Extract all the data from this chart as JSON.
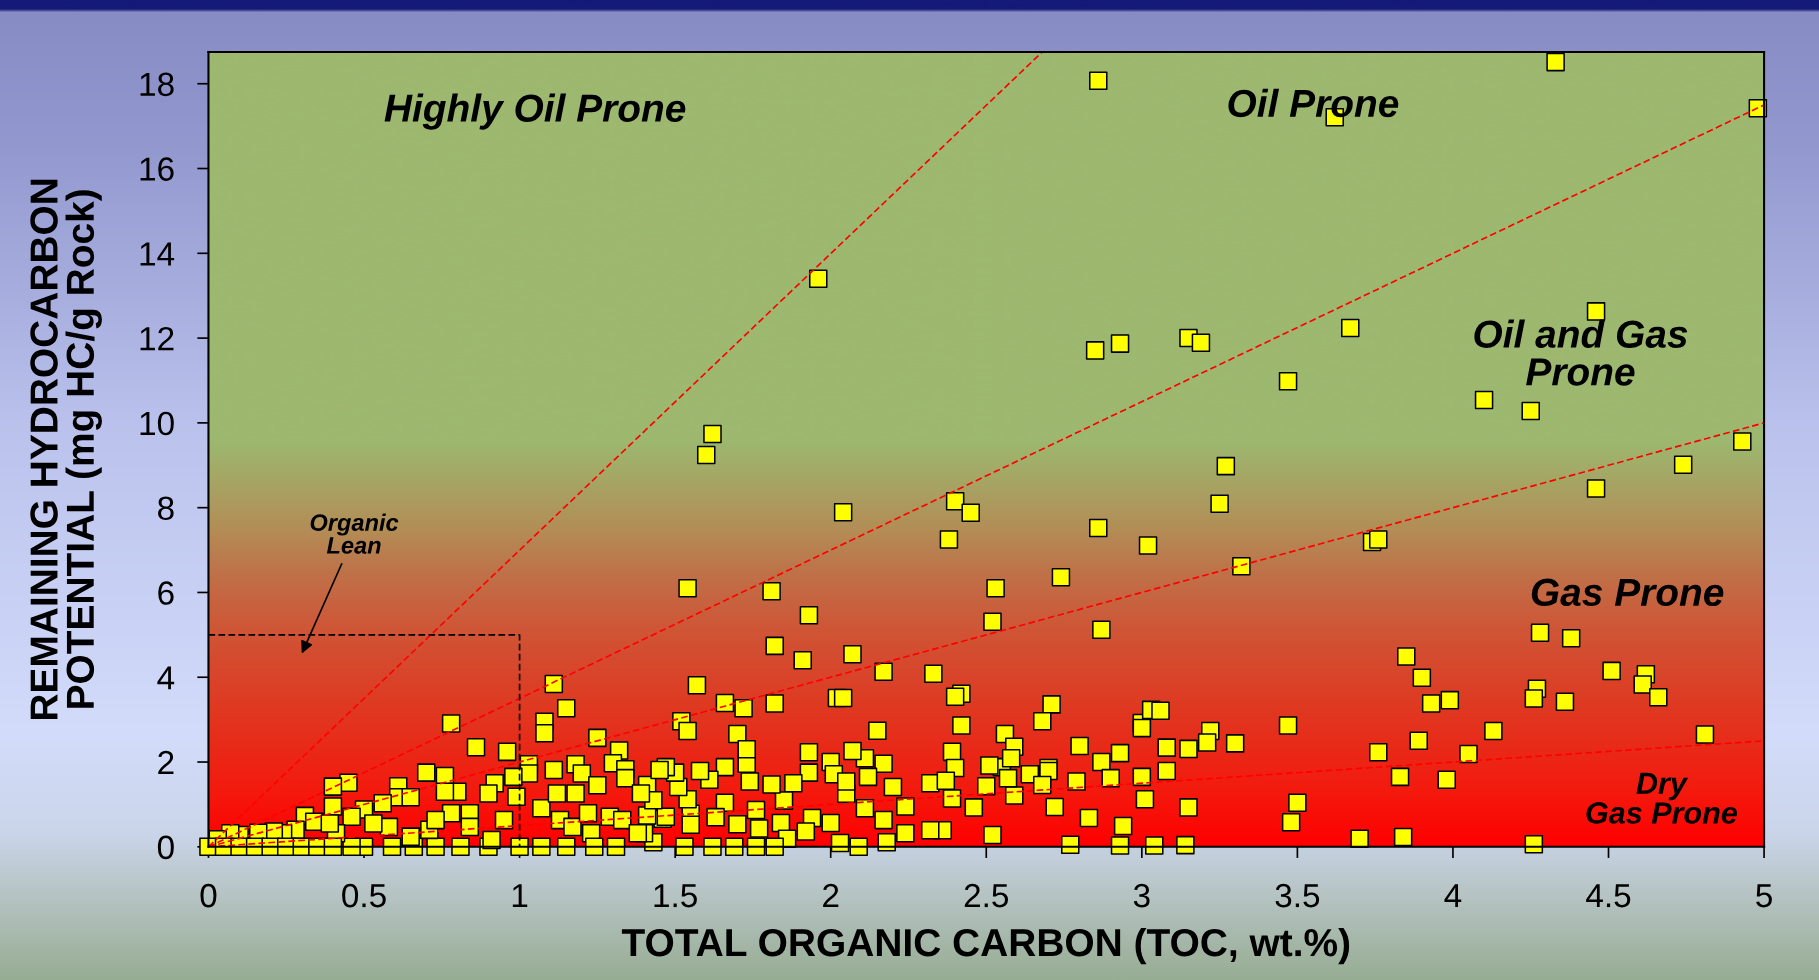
{
  "chart_data": {
    "type": "scatter",
    "xlabel": "TOTAL ORGANIC CARBON (TOC, wt.%)",
    "ylabel": "REMAINING HYDROCARBON\nPOTENTIAL (mg HC/g Rock)",
    "xlim": [
      0,
      5
    ],
    "ylim": [
      0,
      18.75
    ],
    "xticks": [
      0,
      0.5,
      1,
      1.5,
      2,
      2.5,
      3,
      3.5,
      4,
      4.5,
      5
    ],
    "yticks": [
      0,
      2,
      4,
      6,
      8,
      10,
      12,
      14,
      16,
      18
    ],
    "series": [
      {
        "color": "#ffff00",
        "marker": "square",
        "x": [
          2.86,
          4.33,
          3.62,
          4.98,
          1.96,
          2.85,
          2.93,
          3.15,
          3.19,
          3.67,
          3.47,
          4.46,
          4.1,
          4.25,
          4.93,
          4.74,
          4.46,
          3.27,
          3.25,
          2.04,
          2.4,
          2.45,
          1.62,
          1.6,
          2.38,
          2.86,
          3.02,
          3.74,
          3.76,
          3.32,
          2.74,
          1.54,
          1.81,
          2.53,
          2.52,
          2.87,
          1.93,
          1.82,
          1.91,
          2.07,
          2.17,
          2.33,
          4.28,
          4.38,
          3.85,
          3.9,
          4.51,
          4.62,
          4.61,
          4.66,
          4.27,
          4.26,
          4.36,
          3.93,
          3.99,
          3.47,
          4.13,
          4.81,
          3.89,
          3.76,
          4.05,
          3.83,
          3.98,
          3.5,
          3.48,
          3.7,
          3.84,
          4.26,
          3.22,
          3.21,
          3.3,
          3.15,
          3.15,
          3.14,
          1.57,
          1.66,
          1.72,
          1.82,
          2.02,
          2.04,
          2.42,
          2.4,
          2.71,
          2.68,
          2.42,
          2.15,
          1.52,
          1.54,
          1.7,
          3.0,
          3.03,
          3.06,
          3.0,
          2.56,
          2.59,
          2.39,
          2.4,
          2.8,
          2.93,
          2.87,
          2.7,
          2.79,
          2.9,
          3.0,
          3.08,
          3.08,
          3.01,
          2.94,
          2.93,
          3.04,
          2.77,
          2.83,
          2.72,
          2.52,
          2.46,
          2.39,
          2.36,
          2.32,
          2.32,
          2.37,
          2.5,
          2.55,
          2.58,
          2.64,
          2.7,
          2.68,
          2.59,
          2.57,
          2.51,
          2.24,
          2.24,
          2.18,
          2.17,
          2.11,
          2.2,
          2.17,
          2.11,
          2.07,
          2.12,
          2.05,
          2.03,
          2.09,
          2.0,
          1.94,
          1.93,
          2.0,
          2.01,
          2.05,
          1.93,
          1.88,
          1.85,
          1.84,
          1.86,
          1.92,
          1.82,
          1.81,
          1.76,
          1.77,
          1.76,
          1.74,
          1.73,
          1.73,
          1.7,
          1.69,
          1.66,
          1.63,
          1.62,
          1.66,
          1.61,
          1.58,
          1.55,
          1.55,
          1.53,
          1.54,
          1.51,
          1.5,
          1.47,
          1.43,
          1.46,
          1.41,
          1.41,
          1.4,
          1.11,
          1.15,
          0.78,
          1.08,
          1.08,
          0.86,
          0.96,
          1.25,
          1.32,
          1.3,
          1.03,
          1.03,
          1.11,
          1.18,
          1.2,
          1.25,
          1.34,
          1.34,
          1.45,
          0.98,
          0.92,
          0.76,
          0.7,
          0.8,
          0.76,
          0.61,
          0.45,
          0.4,
          0.4,
          0.61,
          0.65,
          0.56,
          0.5,
          0.46,
          0.31,
          0.34,
          0.28,
          0.24,
          0.21,
          0.16,
          0.1,
          0.07,
          0.03,
          0.78,
          0.84,
          0.9,
          0.99,
          1.07,
          1.12,
          1.18,
          1.13,
          1.17,
          1.22,
          1.23,
          1.29,
          1.33,
          1.38,
          1.47,
          1.43,
          1.39,
          1.31,
          1.24,
          1.15,
          1.07,
          1.0,
          0.9,
          0.81,
          0.73,
          0.66,
          0.59,
          0.5,
          0.46,
          0.91,
          0.95,
          0.84,
          0.71,
          0.65,
          0.58,
          0.53,
          0.41,
          0.39,
          0.73,
          0,
          0.05,
          0.1,
          0.15,
          0.2,
          0.25,
          0.3,
          0.35,
          0.4
        ],
        "values": [
          18.07,
          18.51,
          17.21,
          17.42,
          13.4,
          11.71,
          11.87,
          12.0,
          11.89,
          12.24,
          10.98,
          12.63,
          10.54,
          10.28,
          9.56,
          9.01,
          8.45,
          8.98,
          8.09,
          7.89,
          8.15,
          7.88,
          9.74,
          9.24,
          7.25,
          7.52,
          7.11,
          7.19,
          7.25,
          6.62,
          6.36,
          6.1,
          6.03,
          6.1,
          5.31,
          5.12,
          5.46,
          4.74,
          4.4,
          4.54,
          4.13,
          4.08,
          5.05,
          4.92,
          4.49,
          3.99,
          4.15,
          4.07,
          3.83,
          3.53,
          3.73,
          3.5,
          3.42,
          3.38,
          3.46,
          2.86,
          2.73,
          2.65,
          2.5,
          2.23,
          2.19,
          1.65,
          1.58,
          1.04,
          0.58,
          0.19,
          0.23,
          0.06,
          2.73,
          2.46,
          2.44,
          2.31,
          0.93,
          0.04,
          3.81,
          3.39,
          3.27,
          3.38,
          3.51,
          3.51,
          3.61,
          3.54,
          3.36,
          2.96,
          2.86,
          2.74,
          2.96,
          2.73,
          2.66,
          2.92,
          3.23,
          3.21,
          2.8,
          2.66,
          2.36,
          2.24,
          1.86,
          2.38,
          2.21,
          2.0,
          1.86,
          1.54,
          1.62,
          1.65,
          1.79,
          2.34,
          1.12,
          0.49,
          0.03,
          0.03,
          0.05,
          0.68,
          0.94,
          0.28,
          0.93,
          1.14,
          0.39,
          0.39,
          1.5,
          1.56,
          1.43,
          1.88,
          2.09,
          1.71,
          1.79,
          1.46,
          1.21,
          1.62,
          1.92,
          0.95,
          0.32,
          0.11,
          0.63,
          0.91,
          1.41,
          1.96,
          2.09,
          2.26,
          1.65,
          1.25,
          0.09,
          0,
          0.56,
          0.68,
          2.23,
          2.0,
          1.71,
          1.54,
          1.75,
          1.5,
          1.09,
          0.56,
          0.19,
          0.36,
          0,
          1.47,
          0,
          0.43,
          0.87,
          1.54,
          1.96,
          2.3,
          0.53,
          0,
          1.04,
          0.7,
          0,
          1.88,
          1.58,
          1.79,
          0.78,
          0.52,
          0,
          1.12,
          1.41,
          1.75,
          1.88,
          0.11,
          0.66,
          1.46,
          0.74,
          0.32,
          3.84,
          3.27,
          2.91,
          2.95,
          2.68,
          2.35,
          2.24,
          2.57,
          2.27,
          1.97,
          1.95,
          1.73,
          1.81,
          1.95,
          1.73,
          1.45,
          1.83,
          1.62,
          1.81,
          1.65,
          1.5,
          1.67,
          1.75,
          1.3,
          1.3,
          1.43,
          1.51,
          1.42,
          0.95,
          1.17,
          1.17,
          1.03,
          0.88,
          0.71,
          0.73,
          0.59,
          0.4,
          0.32,
          0.36,
          0.33,
          0.28,
          0.32,
          0.18,
          0.79,
          0.79,
          1.26,
          1.18,
          0.91,
          1.26,
          1.26,
          0.63,
          0.47,
          0.79,
          0.32,
          0.71,
          0.63,
          0.32,
          0.71,
          1.1,
          1.26,
          0,
          0,
          0,
          0,
          0,
          0,
          0,
          0,
          0,
          0,
          0,
          0,
          0.16,
          0.63,
          0.47,
          0.4,
          0.24,
          0.47,
          0.55,
          0.32,
          0.55,
          0.63,
          0,
          0,
          0,
          0,
          0,
          0,
          0,
          0,
          0
        ]
      },
      {
        "type": "line",
        "color": "#ff0000",
        "line_style": "dashed",
        "x": [
          0,
          2.68
        ],
        "values": [
          0,
          18.75
        ]
      },
      {
        "type": "line",
        "color": "#ff0000",
        "line_style": "dashed",
        "x": [
          0,
          5
        ],
        "values": [
          0,
          17.5
        ]
      },
      {
        "type": "line",
        "color": "#ff0000",
        "line_style": "dashed",
        "x": [
          0,
          5
        ],
        "values": [
          0,
          10
        ]
      },
      {
        "type": "line",
        "color": "#ff0000",
        "line_style": "dashed",
        "x": [
          0,
          5
        ],
        "values": [
          0,
          2.5
        ]
      },
      {
        "type": "line",
        "color": "#000000",
        "line_style": "dashed",
        "x": [
          0,
          1,
          1
        ],
        "values": [
          5,
          5,
          0
        ]
      }
    ],
    "annotations": [
      "Highly Oil Prone",
      "Oil Prone",
      "Oil and Gas\nProne",
      "Gas Prone",
      "Dry\nGas Prone",
      "Organic\nLean"
    ]
  }
}
